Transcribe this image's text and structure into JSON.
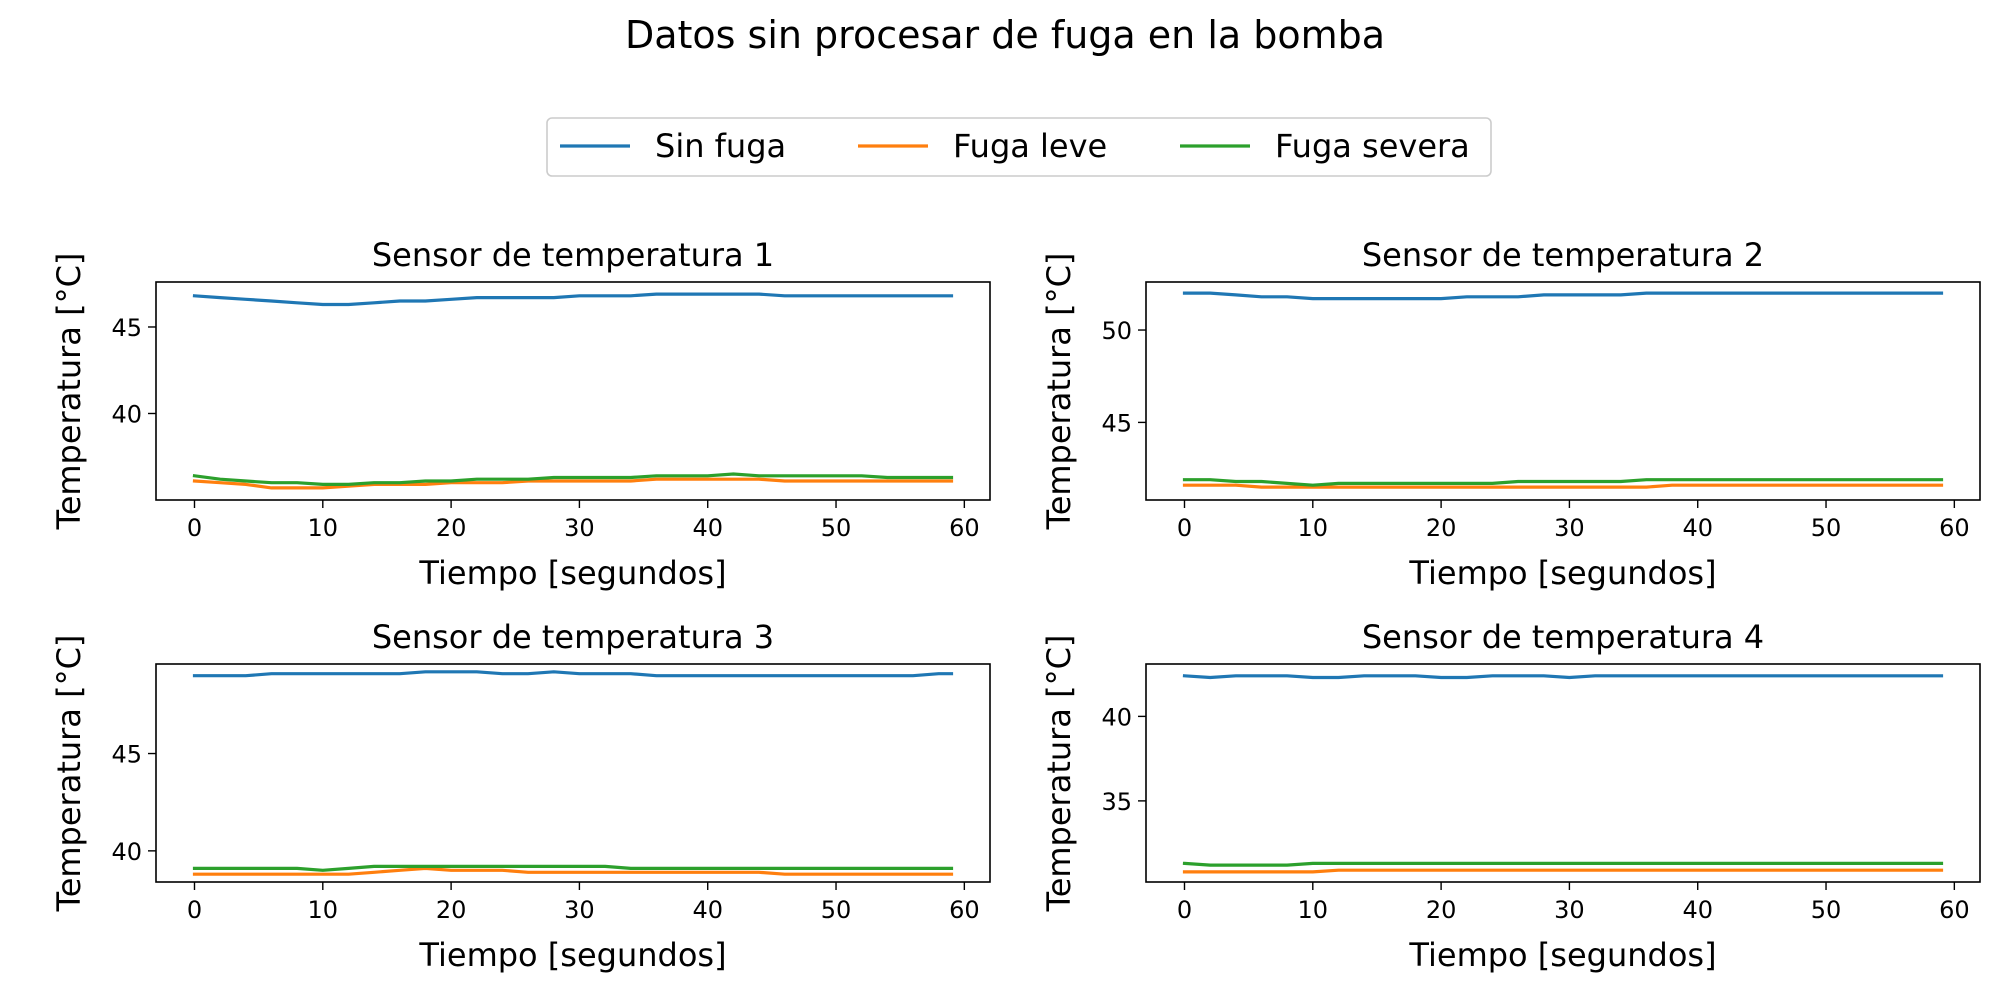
{
  "figure": {
    "title": "Datos sin procesar de fuga en la bomba"
  },
  "legend": {
    "placement": "top-center",
    "entries": [
      {
        "name": "Sin fuga",
        "color": "#1f77b4"
      },
      {
        "name": "Fuga leve",
        "color": "#ff7f0e"
      },
      {
        "name": "Fuga severa",
        "color": "#2ca02c"
      }
    ]
  },
  "chart_data": [
    {
      "type": "line",
      "title": "Sensor de temperatura 1",
      "xlabel": "Tiempo [segundos]",
      "ylabel": "Temperatura [°C]",
      "xlim": [
        -3,
        62
      ],
      "ylim": [
        35,
        47.6
      ],
      "xticks": [
        0,
        10,
        20,
        30,
        40,
        50,
        60
      ],
      "yticks": [
        40,
        45
      ],
      "grid": false,
      "series": [
        {
          "name": "Sin fuga",
          "color": "#1f77b4",
          "x": [
            0,
            2,
            4,
            6,
            8,
            10,
            12,
            14,
            16,
            18,
            20,
            22,
            24,
            26,
            28,
            30,
            32,
            34,
            36,
            38,
            40,
            42,
            44,
            46,
            48,
            50,
            52,
            54,
            56,
            58,
            59
          ],
          "y": [
            46.8,
            46.7,
            46.6,
            46.5,
            46.4,
            46.3,
            46.3,
            46.4,
            46.5,
            46.5,
            46.6,
            46.7,
            46.7,
            46.7,
            46.7,
            46.8,
            46.8,
            46.8,
            46.9,
            46.9,
            46.9,
            46.9,
            46.9,
            46.8,
            46.8,
            46.8,
            46.8,
            46.8,
            46.8,
            46.8,
            46.8
          ]
        },
        {
          "name": "Fuga leve",
          "color": "#ff7f0e",
          "x": [
            0,
            2,
            4,
            6,
            8,
            10,
            12,
            14,
            16,
            18,
            20,
            22,
            24,
            26,
            28,
            30,
            32,
            34,
            36,
            38,
            40,
            42,
            44,
            46,
            48,
            50,
            52,
            54,
            56,
            58,
            59
          ],
          "y": [
            36.1,
            36.0,
            35.9,
            35.7,
            35.7,
            35.7,
            35.8,
            35.9,
            35.9,
            35.9,
            36.0,
            36.0,
            36.0,
            36.1,
            36.1,
            36.1,
            36.1,
            36.1,
            36.2,
            36.2,
            36.2,
            36.2,
            36.2,
            36.1,
            36.1,
            36.1,
            36.1,
            36.1,
            36.1,
            36.1,
            36.1
          ]
        },
        {
          "name": "Fuga severa",
          "color": "#2ca02c",
          "x": [
            0,
            2,
            4,
            6,
            8,
            10,
            12,
            14,
            16,
            18,
            20,
            22,
            24,
            26,
            28,
            30,
            32,
            34,
            36,
            38,
            40,
            42,
            44,
            46,
            48,
            50,
            52,
            54,
            56,
            58,
            59
          ],
          "y": [
            36.4,
            36.2,
            36.1,
            36.0,
            36.0,
            35.9,
            35.9,
            36.0,
            36.0,
            36.1,
            36.1,
            36.2,
            36.2,
            36.2,
            36.3,
            36.3,
            36.3,
            36.3,
            36.4,
            36.4,
            36.4,
            36.5,
            36.4,
            36.4,
            36.4,
            36.4,
            36.4,
            36.3,
            36.3,
            36.3,
            36.3
          ]
        }
      ]
    },
    {
      "type": "line",
      "title": "Sensor de temperatura 2",
      "xlabel": "Tiempo [segundos]",
      "ylabel": "Temperatura [°C]",
      "xlim": [
        -3,
        62
      ],
      "ylim": [
        40.8,
        52.6
      ],
      "xticks": [
        0,
        10,
        20,
        30,
        40,
        50,
        60
      ],
      "yticks": [
        45,
        50
      ],
      "grid": false,
      "series": [
        {
          "name": "Sin fuga",
          "color": "#1f77b4",
          "x": [
            0,
            2,
            4,
            6,
            8,
            10,
            12,
            14,
            16,
            18,
            20,
            22,
            24,
            26,
            28,
            30,
            32,
            34,
            36,
            38,
            40,
            42,
            44,
            46,
            48,
            50,
            52,
            54,
            56,
            58,
            59
          ],
          "y": [
            52.0,
            52.0,
            51.9,
            51.8,
            51.8,
            51.7,
            51.7,
            51.7,
            51.7,
            51.7,
            51.7,
            51.8,
            51.8,
            51.8,
            51.9,
            51.9,
            51.9,
            51.9,
            52.0,
            52.0,
            52.0,
            52.0,
            52.0,
            52.0,
            52.0,
            52.0,
            52.0,
            52.0,
            52.0,
            52.0,
            52.0
          ]
        },
        {
          "name": "Fuga leve",
          "color": "#ff7f0e",
          "x": [
            0,
            2,
            4,
            6,
            8,
            10,
            12,
            14,
            16,
            18,
            20,
            22,
            24,
            26,
            28,
            30,
            32,
            34,
            36,
            38,
            40,
            42,
            44,
            46,
            48,
            50,
            52,
            54,
            56,
            58,
            59
          ],
          "y": [
            41.6,
            41.6,
            41.6,
            41.5,
            41.5,
            41.5,
            41.5,
            41.5,
            41.5,
            41.5,
            41.5,
            41.5,
            41.5,
            41.5,
            41.5,
            41.5,
            41.5,
            41.5,
            41.5,
            41.6,
            41.6,
            41.6,
            41.6,
            41.6,
            41.6,
            41.6,
            41.6,
            41.6,
            41.6,
            41.6,
            41.6
          ]
        },
        {
          "name": "Fuga severa",
          "color": "#2ca02c",
          "x": [
            0,
            2,
            4,
            6,
            8,
            10,
            12,
            14,
            16,
            18,
            20,
            22,
            24,
            26,
            28,
            30,
            32,
            34,
            36,
            38,
            40,
            42,
            44,
            46,
            48,
            50,
            52,
            54,
            56,
            58,
            59
          ],
          "y": [
            41.9,
            41.9,
            41.8,
            41.8,
            41.7,
            41.6,
            41.7,
            41.7,
            41.7,
            41.7,
            41.7,
            41.7,
            41.7,
            41.8,
            41.8,
            41.8,
            41.8,
            41.8,
            41.9,
            41.9,
            41.9,
            41.9,
            41.9,
            41.9,
            41.9,
            41.9,
            41.9,
            41.9,
            41.9,
            41.9,
            41.9
          ]
        }
      ]
    },
    {
      "type": "line",
      "title": "Sensor de temperatura 3",
      "xlabel": "Tiempo [segundos]",
      "ylabel": "Temperatura [°C]",
      "xlim": [
        -3,
        62
      ],
      "ylim": [
        38.4,
        49.6
      ],
      "xticks": [
        0,
        10,
        20,
        30,
        40,
        50,
        60
      ],
      "yticks": [
        40,
        45
      ],
      "grid": false,
      "series": [
        {
          "name": "Sin fuga",
          "color": "#1f77b4",
          "x": [
            0,
            2,
            4,
            6,
            8,
            10,
            12,
            14,
            16,
            18,
            20,
            22,
            24,
            26,
            28,
            30,
            32,
            34,
            36,
            38,
            40,
            42,
            44,
            46,
            48,
            50,
            52,
            54,
            56,
            58,
            59
          ],
          "y": [
            49.0,
            49.0,
            49.0,
            49.1,
            49.1,
            49.1,
            49.1,
            49.1,
            49.1,
            49.2,
            49.2,
            49.2,
            49.1,
            49.1,
            49.2,
            49.1,
            49.1,
            49.1,
            49.0,
            49.0,
            49.0,
            49.0,
            49.0,
            49.0,
            49.0,
            49.0,
            49.0,
            49.0,
            49.0,
            49.1,
            49.1
          ]
        },
        {
          "name": "Fuga leve",
          "color": "#ff7f0e",
          "x": [
            0,
            2,
            4,
            6,
            8,
            10,
            12,
            14,
            16,
            18,
            20,
            22,
            24,
            26,
            28,
            30,
            32,
            34,
            36,
            38,
            40,
            42,
            44,
            46,
            48,
            50,
            52,
            54,
            56,
            58,
            59
          ],
          "y": [
            38.8,
            38.8,
            38.8,
            38.8,
            38.8,
            38.8,
            38.8,
            38.9,
            39.0,
            39.1,
            39.0,
            39.0,
            39.0,
            38.9,
            38.9,
            38.9,
            38.9,
            38.9,
            38.9,
            38.9,
            38.9,
            38.9,
            38.9,
            38.8,
            38.8,
            38.8,
            38.8,
            38.8,
            38.8,
            38.8,
            38.8
          ]
        },
        {
          "name": "Fuga severa",
          "color": "#2ca02c",
          "x": [
            0,
            2,
            4,
            6,
            8,
            10,
            12,
            14,
            16,
            18,
            20,
            22,
            24,
            26,
            28,
            30,
            32,
            34,
            36,
            38,
            40,
            42,
            44,
            46,
            48,
            50,
            52,
            54,
            56,
            58,
            59
          ],
          "y": [
            39.1,
            39.1,
            39.1,
            39.1,
            39.1,
            39.0,
            39.1,
            39.2,
            39.2,
            39.2,
            39.2,
            39.2,
            39.2,
            39.2,
            39.2,
            39.2,
            39.2,
            39.1,
            39.1,
            39.1,
            39.1,
            39.1,
            39.1,
            39.1,
            39.1,
            39.1,
            39.1,
            39.1,
            39.1,
            39.1,
            39.1
          ]
        }
      ]
    },
    {
      "type": "line",
      "title": "Sensor de temperatura 4",
      "xlabel": "Tiempo [segundos]",
      "ylabel": "Temperatura [°C]",
      "xlim": [
        -3,
        62
      ],
      "ylim": [
        30.2,
        43.1
      ],
      "xticks": [
        0,
        10,
        20,
        30,
        40,
        50,
        60
      ],
      "yticks": [
        35,
        40
      ],
      "grid": false,
      "series": [
        {
          "name": "Sin fuga",
          "color": "#1f77b4",
          "x": [
            0,
            2,
            4,
            6,
            8,
            10,
            12,
            14,
            16,
            18,
            20,
            22,
            24,
            26,
            28,
            30,
            32,
            34,
            36,
            38,
            40,
            42,
            44,
            46,
            48,
            50,
            52,
            54,
            56,
            58,
            59
          ],
          "y": [
            42.4,
            42.3,
            42.4,
            42.4,
            42.4,
            42.3,
            42.3,
            42.4,
            42.4,
            42.4,
            42.3,
            42.3,
            42.4,
            42.4,
            42.4,
            42.3,
            42.4,
            42.4,
            42.4,
            42.4,
            42.4,
            42.4,
            42.4,
            42.4,
            42.4,
            42.4,
            42.4,
            42.4,
            42.4,
            42.4,
            42.4
          ]
        },
        {
          "name": "Fuga leve",
          "color": "#ff7f0e",
          "x": [
            0,
            2,
            4,
            6,
            8,
            10,
            12,
            14,
            16,
            18,
            20,
            22,
            24,
            26,
            28,
            30,
            32,
            34,
            36,
            38,
            40,
            42,
            44,
            46,
            48,
            50,
            52,
            54,
            56,
            58,
            59
          ],
          "y": [
            30.8,
            30.8,
            30.8,
            30.8,
            30.8,
            30.8,
            30.9,
            30.9,
            30.9,
            30.9,
            30.9,
            30.9,
            30.9,
            30.9,
            30.9,
            30.9,
            30.9,
            30.9,
            30.9,
            30.9,
            30.9,
            30.9,
            30.9,
            30.9,
            30.9,
            30.9,
            30.9,
            30.9,
            30.9,
            30.9,
            30.9
          ]
        },
        {
          "name": "Fuga severa",
          "color": "#2ca02c",
          "x": [
            0,
            2,
            4,
            6,
            8,
            10,
            12,
            14,
            16,
            18,
            20,
            22,
            24,
            26,
            28,
            30,
            32,
            34,
            36,
            38,
            40,
            42,
            44,
            46,
            48,
            50,
            52,
            54,
            56,
            58,
            59
          ],
          "y": [
            31.3,
            31.2,
            31.2,
            31.2,
            31.2,
            31.3,
            31.3,
            31.3,
            31.3,
            31.3,
            31.3,
            31.3,
            31.3,
            31.3,
            31.3,
            31.3,
            31.3,
            31.3,
            31.3,
            31.3,
            31.3,
            31.3,
            31.3,
            31.3,
            31.3,
            31.3,
            31.3,
            31.3,
            31.3,
            31.3,
            31.3
          ]
        }
      ]
    }
  ]
}
